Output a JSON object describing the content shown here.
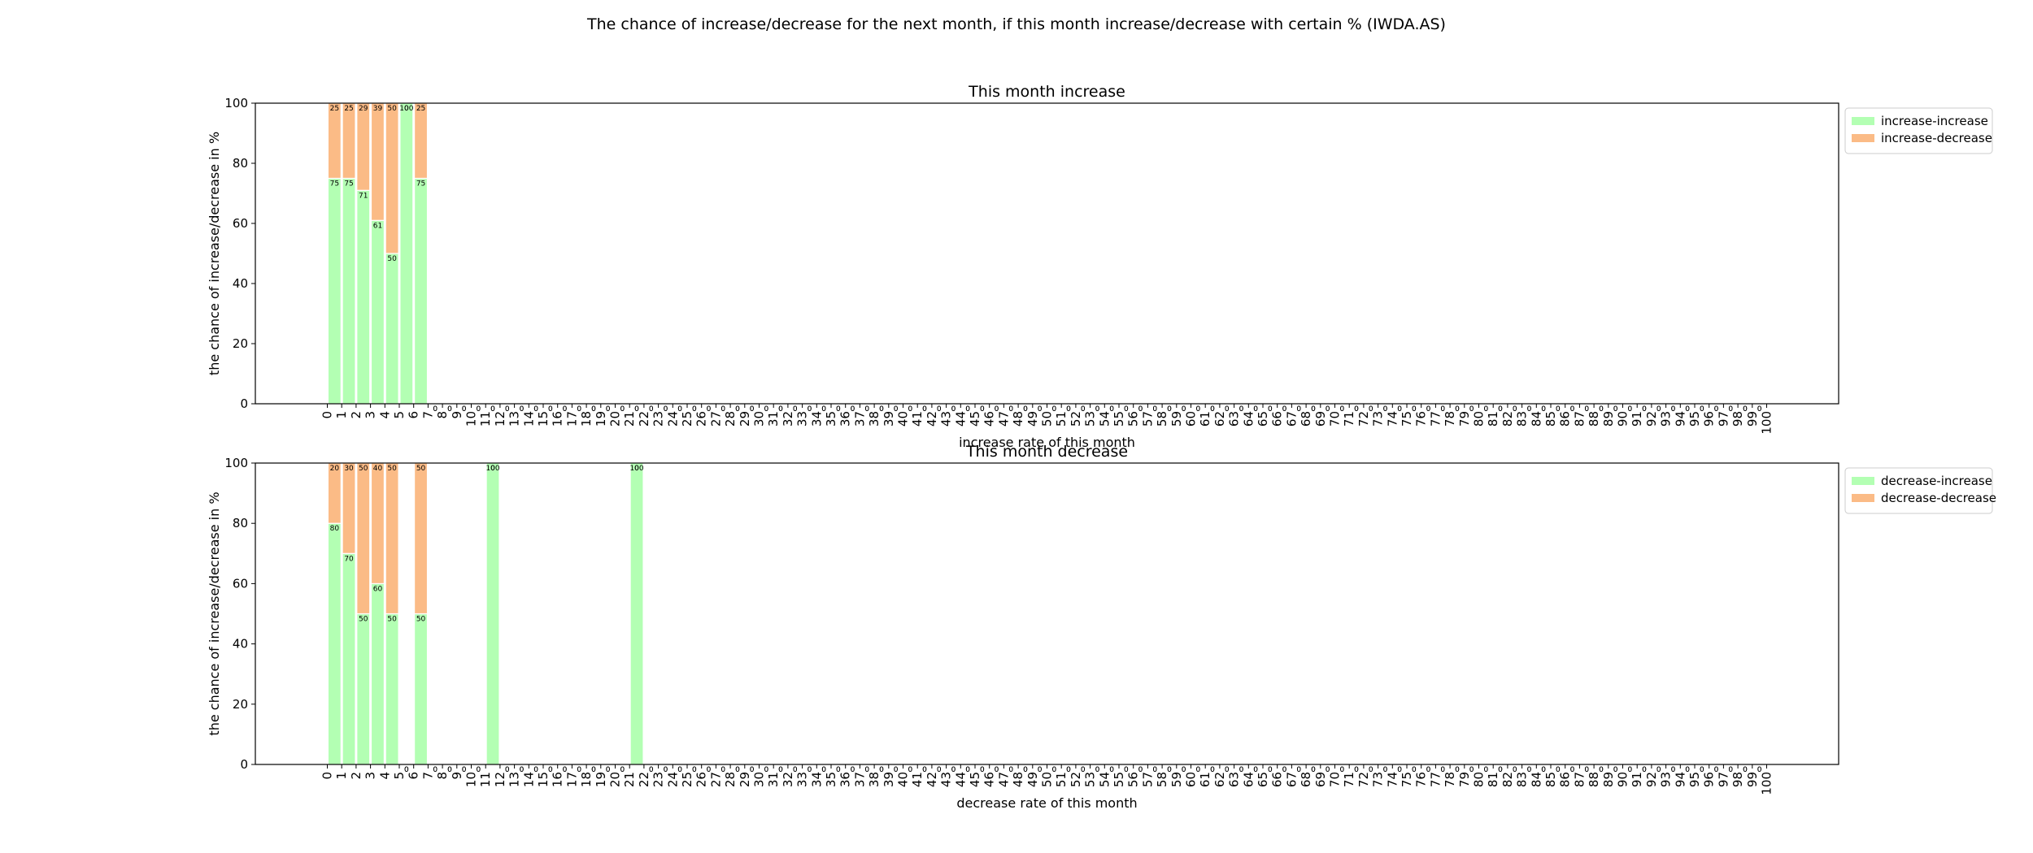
{
  "title": "The chance of increase/decrease for the next month, if this month increase/decrease with certain % (IWDA.AS)",
  "chart_data": [
    {
      "type": "bar",
      "title": "This month increase",
      "xlabel": "increase rate of this month",
      "ylabel": "the chance of increase/decrease in %",
      "stacked": true,
      "legend": "upper right outside",
      "x": [
        0.5,
        1.5,
        2.5,
        3.5,
        4.5,
        5.5,
        6.5,
        7.5,
        8.5,
        9.5,
        10.5,
        11.5,
        12.5,
        13.5,
        14.5,
        15.5,
        16.5,
        17.5,
        18.5,
        19.5,
        20.5,
        21.5,
        22.5,
        23.5,
        24.5,
        25.5,
        26.5,
        27.5,
        28.5,
        29.5,
        30.5,
        31.5,
        32.5,
        33.5,
        34.5,
        35.5,
        36.5,
        37.5,
        38.5,
        39.5,
        40.5,
        41.5,
        42.5,
        43.5,
        44.5,
        45.5,
        46.5,
        47.5,
        48.5,
        49.5,
        50.5,
        51.5,
        52.5,
        53.5,
        54.5,
        55.5,
        56.5,
        57.5,
        58.5,
        59.5,
        60.5,
        61.5,
        62.5,
        63.5,
        64.5,
        65.5,
        66.5,
        67.5,
        68.5,
        69.5,
        70.5,
        71.5,
        72.5,
        73.5,
        74.5,
        75.5,
        76.5,
        77.5,
        78.5,
        79.5,
        80.5,
        81.5,
        82.5,
        83.5,
        84.5,
        85.5,
        86.5,
        87.5,
        88.5,
        89.5,
        90.5,
        91.5,
        92.5,
        93.5,
        94.5,
        95.5,
        96.5,
        97.5,
        98.5,
        99.5
      ],
      "series": [
        {
          "name": "increase-increase",
          "color": "#b3ffb3",
          "values": [
            75,
            75,
            71,
            61,
            50,
            100,
            75,
            0,
            0,
            0,
            0,
            0,
            0,
            0,
            0,
            0,
            0,
            0,
            0,
            0,
            0,
            0,
            0,
            0,
            0,
            0,
            0,
            0,
            0,
            0,
            0,
            0,
            0,
            0,
            0,
            0,
            0,
            0,
            0,
            0,
            0,
            0,
            0,
            0,
            0,
            0,
            0,
            0,
            0,
            0,
            0,
            0,
            0,
            0,
            0,
            0,
            0,
            0,
            0,
            0,
            0,
            0,
            0,
            0,
            0,
            0,
            0,
            0,
            0,
            0,
            0,
            0,
            0,
            0,
            0,
            0,
            0,
            0,
            0,
            0,
            0,
            0,
            0,
            0,
            0,
            0,
            0,
            0,
            0,
            0,
            0,
            0,
            0,
            0,
            0,
            0,
            0,
            0,
            0,
            0
          ]
        },
        {
          "name": "increase-decrease",
          "color": "#fbbb86",
          "values": [
            25,
            25,
            29,
            39,
            50,
            0,
            25,
            0,
            0,
            0,
            0,
            0,
            0,
            0,
            0,
            0,
            0,
            0,
            0,
            0,
            0,
            0,
            0,
            0,
            0,
            0,
            0,
            0,
            0,
            0,
            0,
            0,
            0,
            0,
            0,
            0,
            0,
            0,
            0,
            0,
            0,
            0,
            0,
            0,
            0,
            0,
            0,
            0,
            0,
            0,
            0,
            0,
            0,
            0,
            0,
            0,
            0,
            0,
            0,
            0,
            0,
            0,
            0,
            0,
            0,
            0,
            0,
            0,
            0,
            0,
            0,
            0,
            0,
            0,
            0,
            0,
            0,
            0,
            0,
            0,
            0,
            0,
            0,
            0,
            0,
            0,
            0,
            0,
            0,
            0,
            0,
            0,
            0,
            0,
            0,
            0,
            0,
            0,
            0,
            0
          ]
        }
      ],
      "xlim": [
        -5,
        105
      ],
      "ylim": [
        0,
        100
      ],
      "yticks": [
        0,
        20,
        40,
        60,
        80,
        100
      ],
      "xticks": [
        0,
        1,
        2,
        3,
        4,
        5,
        6,
        7,
        8,
        9,
        10,
        11,
        12,
        13,
        14,
        15,
        16,
        17,
        18,
        19,
        20,
        21,
        22,
        23,
        24,
        25,
        26,
        27,
        28,
        29,
        30,
        31,
        32,
        33,
        34,
        35,
        36,
        37,
        38,
        39,
        40,
        41,
        42,
        43,
        44,
        45,
        46,
        47,
        48,
        49,
        50,
        51,
        52,
        53,
        54,
        55,
        56,
        57,
        58,
        59,
        60,
        61,
        62,
        63,
        64,
        65,
        66,
        67,
        68,
        69,
        70,
        71,
        72,
        73,
        74,
        75,
        76,
        77,
        78,
        79,
        80,
        81,
        82,
        83,
        84,
        85,
        86,
        87,
        88,
        89,
        90,
        91,
        92,
        93,
        94,
        95,
        96,
        97,
        98,
        99,
        100
      ]
    },
    {
      "type": "bar",
      "title": "This month decrease",
      "xlabel": "decrease rate of this month",
      "ylabel": "the chance of increase/decrease in %",
      "stacked": true,
      "legend": "upper right outside",
      "x": [
        0.5,
        1.5,
        2.5,
        3.5,
        4.5,
        5.5,
        6.5,
        7.5,
        8.5,
        9.5,
        10.5,
        11.5,
        12.5,
        13.5,
        14.5,
        15.5,
        16.5,
        17.5,
        18.5,
        19.5,
        20.5,
        21.5,
        22.5,
        23.5,
        24.5,
        25.5,
        26.5,
        27.5,
        28.5,
        29.5,
        30.5,
        31.5,
        32.5,
        33.5,
        34.5,
        35.5,
        36.5,
        37.5,
        38.5,
        39.5,
        40.5,
        41.5,
        42.5,
        43.5,
        44.5,
        45.5,
        46.5,
        47.5,
        48.5,
        49.5,
        50.5,
        51.5,
        52.5,
        53.5,
        54.5,
        55.5,
        56.5,
        57.5,
        58.5,
        59.5,
        60.5,
        61.5,
        62.5,
        63.5,
        64.5,
        65.5,
        66.5,
        67.5,
        68.5,
        69.5,
        70.5,
        71.5,
        72.5,
        73.5,
        74.5,
        75.5,
        76.5,
        77.5,
        78.5,
        79.5,
        80.5,
        81.5,
        82.5,
        83.5,
        84.5,
        85.5,
        86.5,
        87.5,
        88.5,
        89.5,
        90.5,
        91.5,
        92.5,
        93.5,
        94.5,
        95.5,
        96.5,
        97.5,
        98.5,
        99.5
      ],
      "series": [
        {
          "name": "decrease-increase",
          "color": "#b3ffb3",
          "values": [
            80,
            70,
            50,
            60,
            50,
            0,
            50,
            0,
            0,
            0,
            0,
            100,
            0,
            0,
            0,
            0,
            0,
            0,
            0,
            0,
            0,
            100,
            0,
            0,
            0,
            0,
            0,
            0,
            0,
            0,
            0,
            0,
            0,
            0,
            0,
            0,
            0,
            0,
            0,
            0,
            0,
            0,
            0,
            0,
            0,
            0,
            0,
            0,
            0,
            0,
            0,
            0,
            0,
            0,
            0,
            0,
            0,
            0,
            0,
            0,
            0,
            0,
            0,
            0,
            0,
            0,
            0,
            0,
            0,
            0,
            0,
            0,
            0,
            0,
            0,
            0,
            0,
            0,
            0,
            0,
            0,
            0,
            0,
            0,
            0,
            0,
            0,
            0,
            0,
            0,
            0,
            0,
            0,
            0,
            0,
            0,
            0,
            0,
            0,
            0
          ]
        },
        {
          "name": "decrease-decrease",
          "color": "#fbbb86",
          "values": [
            20,
            30,
            50,
            40,
            50,
            0,
            50,
            0,
            0,
            0,
            0,
            0,
            0,
            0,
            0,
            0,
            0,
            0,
            0,
            0,
            0,
            0,
            0,
            0,
            0,
            0,
            0,
            0,
            0,
            0,
            0,
            0,
            0,
            0,
            0,
            0,
            0,
            0,
            0,
            0,
            0,
            0,
            0,
            0,
            0,
            0,
            0,
            0,
            0,
            0,
            0,
            0,
            0,
            0,
            0,
            0,
            0,
            0,
            0,
            0,
            0,
            0,
            0,
            0,
            0,
            0,
            0,
            0,
            0,
            0,
            0,
            0,
            0,
            0,
            0,
            0,
            0,
            0,
            0,
            0,
            0,
            0,
            0,
            0,
            0,
            0,
            0,
            0,
            0,
            0,
            0,
            0,
            0,
            0,
            0,
            0,
            0,
            0,
            0,
            0
          ]
        }
      ],
      "xlim": [
        -5,
        105
      ],
      "ylim": [
        0,
        100
      ],
      "yticks": [
        0,
        20,
        40,
        60,
        80,
        100
      ],
      "xticks": [
        0,
        1,
        2,
        3,
        4,
        5,
        6,
        7,
        8,
        9,
        10,
        11,
        12,
        13,
        14,
        15,
        16,
        17,
        18,
        19,
        20,
        21,
        22,
        23,
        24,
        25,
        26,
        27,
        28,
        29,
        30,
        31,
        32,
        33,
        34,
        35,
        36,
        37,
        38,
        39,
        40,
        41,
        42,
        43,
        44,
        45,
        46,
        47,
        48,
        49,
        50,
        51,
        52,
        53,
        54,
        55,
        56,
        57,
        58,
        59,
        60,
        61,
        62,
        63,
        64,
        65,
        66,
        67,
        68,
        69,
        70,
        71,
        72,
        73,
        74,
        75,
        76,
        77,
        78,
        79,
        80,
        81,
        82,
        83,
        84,
        85,
        86,
        87,
        88,
        89,
        90,
        91,
        92,
        93,
        94,
        95,
        96,
        97,
        98,
        99,
        100
      ]
    }
  ]
}
